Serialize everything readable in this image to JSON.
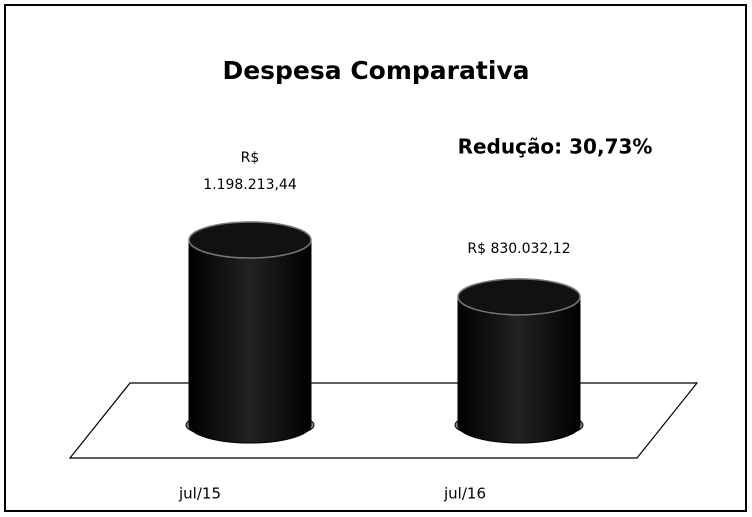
{
  "chart_data": {
    "type": "bar",
    "title": "Despesa Comparativa",
    "categories": [
      "jul/15",
      "jul/16"
    ],
    "values": [
      1198213.44,
      830032.12
    ],
    "value_labels": [
      "R$ 1.198.213,44",
      "R$ 830.032,12"
    ],
    "color": "#000000",
    "annotation": "Redução: 30,73%"
  }
}
